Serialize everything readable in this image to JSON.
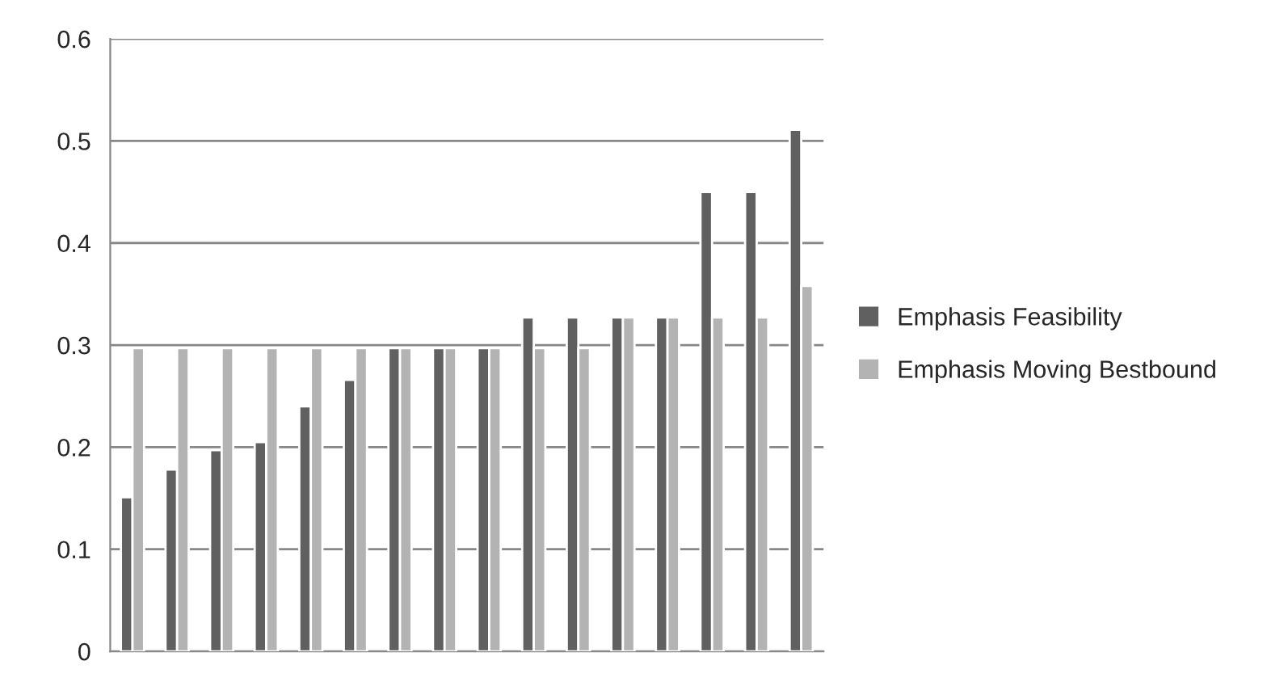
{
  "chart_data": {
    "type": "bar",
    "categories": [
      null,
      null,
      null,
      null,
      null,
      null,
      null,
      null,
      null,
      null,
      null,
      null,
      null,
      null,
      null,
      null
    ],
    "series": [
      {
        "name": "Emphasis Feasibility",
        "color": "#606060",
        "values": [
          0.151,
          0.178,
          0.197,
          0.205,
          0.24,
          0.266,
          0.297,
          0.297,
          0.297,
          0.327,
          0.327,
          0.327,
          0.327,
          0.45,
          0.45,
          0.511
        ]
      },
      {
        "name": "Emphasis Moving Bestbound",
        "color": "#b3b3b3",
        "values": [
          0.297,
          0.297,
          0.297,
          0.297,
          0.297,
          0.297,
          0.297,
          0.297,
          0.297,
          0.297,
          0.297,
          0.327,
          0.327,
          0.327,
          0.327,
          0.358
        ]
      }
    ],
    "ylim": [
      0,
      0.6
    ],
    "yticks": [
      0,
      0.1,
      0.2,
      0.3,
      0.4,
      0.5,
      0.6
    ],
    "grid": "y",
    "legend": "right"
  }
}
